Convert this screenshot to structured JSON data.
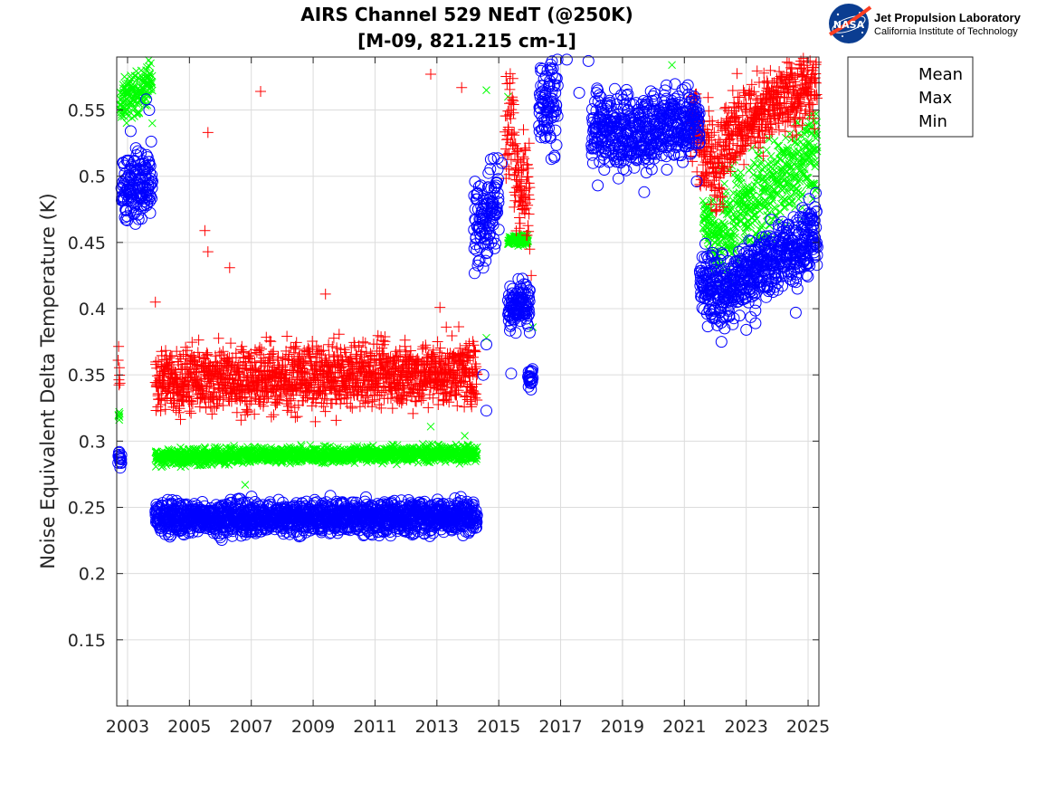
{
  "logo": {
    "agency": "NASA",
    "lab_name": "Jet Propulsion Laboratory",
    "institution": "California Institute of Technology"
  },
  "chart_data": {
    "type": "scatter",
    "title": "AIRS Channel 529 NEdT (@250K)",
    "subtitle": "[M-09, 821.215 cm-1]",
    "xlabel": "",
    "ylabel": "Noise Equivalent Delta Temperature (K)",
    "xlim": [
      2002.65,
      2025.35
    ],
    "ylim": [
      0.1,
      0.59
    ],
    "xticks": [
      2003,
      2005,
      2007,
      2009,
      2011,
      2013,
      2015,
      2017,
      2019,
      2021,
      2023,
      2025
    ],
    "xtick_labels": [
      "2003",
      "2005",
      "2007",
      "2009",
      "2011",
      "2013",
      "2015",
      "2017",
      "2019",
      "2021",
      "2023",
      "2025"
    ],
    "yticks": [
      0.15,
      0.2,
      0.25,
      0.3,
      0.35,
      0.4,
      0.45,
      0.5,
      0.55
    ],
    "ytick_labels": [
      "0.15",
      "0.2",
      "0.25",
      "0.3",
      "0.35",
      "0.4",
      "0.45",
      "0.5",
      "0.55"
    ],
    "grid": true,
    "legend_position": "outside-top-right",
    "series": [
      {
        "name": "Mean",
        "marker": "x",
        "color": "#00ff00",
        "segments": [
          {
            "x": [
              2002.7,
              2002.75
            ],
            "y": [
              0.318,
              0.318
            ],
            "jitter": 0.002
          },
          {
            "x": [
              2002.75,
              2003.8
            ],
            "y": [
              0.555,
              0.57
            ],
            "jitter": 0.008
          },
          {
            "x": [
              2003.9,
              2014.3
            ],
            "y": [
              0.288,
              0.291
            ],
            "jitter": 0.003
          },
          {
            "x": [
              2015.3,
              2015.95
            ],
            "y": [
              0.452,
              0.452
            ],
            "jitter": 0.002
          },
          {
            "x": [
              2021.6,
              2022.2
            ],
            "y": [
              0.47,
              0.44
            ],
            "jitter": 0.012
          },
          {
            "x": [
              2022.2,
              2025.3
            ],
            "y": [
              0.46,
              0.52
            ],
            "jitter": 0.018
          }
        ],
        "points": [
          {
            "x": 2006.8,
            "y": 0.267
          },
          {
            "x": 2012.8,
            "y": 0.311
          },
          {
            "x": 2013.9,
            "y": 0.304
          },
          {
            "x": 2014.6,
            "y": 0.378
          },
          {
            "x": 2014.6,
            "y": 0.565
          },
          {
            "x": 2015.3,
            "y": 0.56
          },
          {
            "x": 2016.1,
            "y": 0.386
          },
          {
            "x": 2020.6,
            "y": 0.584
          },
          {
            "x": 2003.7,
            "y": 0.583
          },
          {
            "x": 2003.8,
            "y": 0.54
          }
        ]
      },
      {
        "name": "Max",
        "marker": "+",
        "color": "#ff0000",
        "segments": [
          {
            "x": [
              2002.7,
              2002.75
            ],
            "y": [
              0.352,
              0.352
            ],
            "jitter": 0.008
          },
          {
            "x": [
              2003.9,
              2014.3
            ],
            "y": [
              0.345,
              0.352
            ],
            "jitter": 0.012
          },
          {
            "x": [
              2015.2,
              2015.5
            ],
            "y": [
              0.54,
              0.555
            ],
            "jitter": 0.025
          },
          {
            "x": [
              2015.5,
              2016.0
            ],
            "y": [
              0.5,
              0.49
            ],
            "jitter": 0.02
          },
          {
            "x": [
              2021.2,
              2021.6
            ],
            "y": [
              0.55,
              0.52
            ],
            "jitter": 0.015
          },
          {
            "x": [
              2021.6,
              2022.3
            ],
            "y": [
              0.52,
              0.5
            ],
            "jitter": 0.018
          },
          {
            "x": [
              2022.3,
              2025.3
            ],
            "y": [
              0.535,
              0.57
            ],
            "jitter": 0.014
          }
        ],
        "points": [
          {
            "x": 2005.6,
            "y": 0.533
          },
          {
            "x": 2005.5,
            "y": 0.459
          },
          {
            "x": 2005.6,
            "y": 0.443
          },
          {
            "x": 2006.3,
            "y": 0.431
          },
          {
            "x": 2007.3,
            "y": 0.564
          },
          {
            "x": 2012.8,
            "y": 0.577
          },
          {
            "x": 2013.8,
            "y": 0.567
          },
          {
            "x": 2003.9,
            "y": 0.405
          },
          {
            "x": 2009.4,
            "y": 0.411
          },
          {
            "x": 2013.1,
            "y": 0.401
          },
          {
            "x": 2016.05,
            "y": 0.425
          },
          {
            "x": 2016.0,
            "y": 0.445
          }
        ]
      },
      {
        "name": "Min",
        "marker": "o",
        "color": "#0000ff",
        "segments": [
          {
            "x": [
              2002.7,
              2002.8
            ],
            "y": [
              0.288,
              0.288
            ],
            "jitter": 0.003
          },
          {
            "x": [
              2002.8,
              2003.8
            ],
            "y": [
              0.492,
              0.495
            ],
            "jitter": 0.013
          },
          {
            "x": [
              2003.9,
              2014.3
            ],
            "y": [
              0.242,
              0.243
            ],
            "jitter": 0.006
          },
          {
            "x": [
              2014.2,
              2015.0
            ],
            "y": [
              0.46,
              0.48
            ],
            "jitter": 0.018
          },
          {
            "x": [
              2015.3,
              2016.0
            ],
            "y": [
              0.402,
              0.405
            ],
            "jitter": 0.008
          },
          {
            "x": [
              2015.95,
              2016.1
            ],
            "y": [
              0.35,
              0.35
            ],
            "jitter": 0.005
          },
          {
            "x": [
              2016.3,
              2016.9
            ],
            "y": [
              0.55,
              0.56
            ],
            "jitter": 0.02
          },
          {
            "x": [
              2018.0,
              2020.5
            ],
            "y": [
              0.535,
              0.535
            ],
            "jitter": 0.014
          },
          {
            "x": [
              2020.5,
              2021.5
            ],
            "y": [
              0.538,
              0.54
            ],
            "jitter": 0.012
          },
          {
            "x": [
              2021.5,
              2022.6
            ],
            "y": [
              0.42,
              0.41
            ],
            "jitter": 0.013
          },
          {
            "x": [
              2022.6,
              2025.3
            ],
            "y": [
              0.42,
              0.455
            ],
            "jitter": 0.013
          }
        ],
        "points": [
          {
            "x": 2003.6,
            "y": 0.558
          },
          {
            "x": 2003.7,
            "y": 0.55
          },
          {
            "x": 2003.1,
            "y": 0.534
          },
          {
            "x": 2014.6,
            "y": 0.373
          },
          {
            "x": 2014.6,
            "y": 0.323
          },
          {
            "x": 2014.5,
            "y": 0.35
          },
          {
            "x": 2015.4,
            "y": 0.351
          },
          {
            "x": 2015.1,
            "y": 0.51
          },
          {
            "x": 2016.0,
            "y": 0.382
          },
          {
            "x": 2017.6,
            "y": 0.563
          },
          {
            "x": 2016.9,
            "y": 0.588
          },
          {
            "x": 2017.2,
            "y": 0.588
          },
          {
            "x": 2017.9,
            "y": 0.587
          },
          {
            "x": 2016.7,
            "y": 0.513
          },
          {
            "x": 2023.0,
            "y": 0.384
          },
          {
            "x": 2023.3,
            "y": 0.389
          },
          {
            "x": 2024.6,
            "y": 0.397
          },
          {
            "x": 2022.2,
            "y": 0.375
          },
          {
            "x": 2018.2,
            "y": 0.493
          },
          {
            "x": 2019.7,
            "y": 0.488
          },
          {
            "x": 2021.4,
            "y": 0.496
          }
        ]
      }
    ]
  }
}
